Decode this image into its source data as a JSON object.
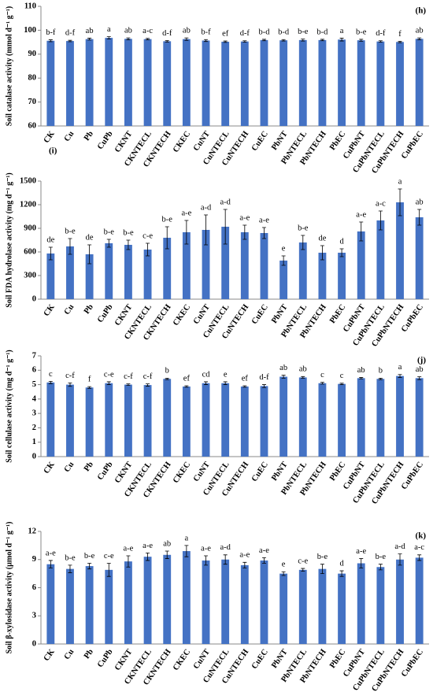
{
  "chart_data": [
    {
      "type": "bar",
      "panel_label": "(h)",
      "y_label": "Soil catalase activity (mmol d⁻¹ g⁻¹)",
      "categories": [
        "CK",
        "Cu",
        "Pb",
        "CuPb",
        "CKNT",
        "CKNTECL",
        "CKNTECH",
        "CKEC",
        "CuNT",
        "CuNTECL",
        "CuNTECH",
        "CuEC",
        "PbNT",
        "PbNTECL",
        "PbNTECH",
        "PbEC",
        "CuPbNT",
        "CuPbNTECL",
        "CuPbNTECH",
        "CuPbEC"
      ],
      "series": [
        {
          "color": "#4472c4",
          "values": [
            95.6,
            95.5,
            96.3,
            96.8,
            96.4,
            96.3,
            95.4,
            96.3,
            95.7,
            95.2,
            95.3,
            95.9,
            95.8,
            95.9,
            95.9,
            96.1,
            95.8,
            95.3,
            95.1,
            96.4
          ],
          "errors": [
            0.4,
            0.3,
            0.4,
            0.5,
            0.4,
            0.3,
            0.3,
            0.5,
            0.4,
            0.3,
            0.3,
            0.3,
            0.3,
            0.4,
            0.3,
            0.6,
            0.4,
            0.3,
            0.3,
            0.4
          ],
          "letters": [
            "b-f",
            "d-f",
            "ab",
            "a",
            "ab",
            "a-c",
            "d-f",
            "ab",
            "b-f",
            "ef",
            "d-f",
            "b-d",
            "b-d",
            "b-e",
            "b-d",
            "a",
            "b-e",
            "d-f",
            "f",
            "ab"
          ]
        }
      ],
      "ylim": [
        60,
        110
      ],
      "yticks": [
        60,
        70,
        80,
        90,
        100,
        110
      ]
    },
    {
      "type": "bar",
      "panel_label": "(i)",
      "y_label": "Soil FDA hydrolase activity (mg d⁻¹ g⁻¹)",
      "categories": [
        "CK",
        "Cu",
        "Pb",
        "CuPb",
        "CKNT",
        "CKNTECL",
        "CKNTECH",
        "CKEC",
        "CuNT",
        "CuNTECL",
        "CuNTECH",
        "CuEC",
        "PbNT",
        "PbNTECL",
        "PbNTECH",
        "PbEC",
        "CuPbNT",
        "CuPbNTECL",
        "CuPbNTECH",
        "CuPbEC"
      ],
      "series": [
        {
          "color": "#4472c4",
          "values": [
            580,
            670,
            570,
            710,
            690,
            630,
            780,
            850,
            880,
            920,
            850,
            840,
            490,
            720,
            590,
            590,
            860,
            1000,
            1230,
            1040
          ],
          "errors": [
            80,
            100,
            120,
            50,
            60,
            80,
            140,
            150,
            190,
            220,
            90,
            70,
            60,
            90,
            90,
            50,
            120,
            120,
            170,
            100
          ],
          "letters": [
            "de",
            "b-e",
            "de",
            "b-e",
            "b-e",
            "c-e",
            "b-e",
            "a-e",
            "a-d",
            "a-d",
            "a-e",
            "a-e",
            "e",
            "b-e",
            "de",
            "d",
            "a-e",
            "a-c",
            "a",
            "ab"
          ]
        }
      ],
      "ylim": [
        0,
        1500
      ],
      "yticks": [
        0,
        300,
        600,
        900,
        1200,
        1500
      ]
    },
    {
      "type": "bar",
      "panel_label": "(j)",
      "y_label": "Soil cellulase activity (mg d⁻¹ g⁻¹)",
      "categories": [
        "CK",
        "Cu",
        "Pb",
        "CuPb",
        "CKNT",
        "CKNTECL",
        "CKNTECH",
        "CKEC",
        "CuNT",
        "CuNTECL",
        "CuNTECH",
        "CuEC",
        "PbNT",
        "PbNTECL",
        "PbNTECH",
        "PbEC",
        "CuPbNT",
        "CuPbNTECL",
        "CuPbNTECH",
        "CuPbEC"
      ],
      "series": [
        {
          "color": "#4472c4",
          "values": [
            5.15,
            5.0,
            4.8,
            5.1,
            5.0,
            4.97,
            5.4,
            4.87,
            5.1,
            5.1,
            4.87,
            4.9,
            5.55,
            5.5,
            5.1,
            5.05,
            5.45,
            5.4,
            5.6,
            5.45
          ],
          "errors": [
            0.08,
            0.12,
            0.06,
            0.1,
            0.05,
            0.08,
            0.05,
            0.05,
            0.1,
            0.1,
            0.05,
            0.1,
            0.1,
            0.06,
            0.06,
            0.05,
            0.05,
            0.05,
            0.1,
            0.1
          ],
          "letters": [
            "c",
            "c-f",
            "f",
            "c-e",
            "c-f",
            "c-f",
            "b",
            "ef",
            "cd",
            "e",
            "ef",
            "d-f",
            "ab",
            "ab",
            "c",
            "c",
            "ab",
            "b",
            "a",
            "ab"
          ]
        }
      ],
      "ylim": [
        0,
        7
      ],
      "yticks": [
        0,
        1,
        2,
        3,
        4,
        5,
        6,
        7
      ]
    },
    {
      "type": "bar",
      "panel_label": "(k)",
      "y_label": "Soil β-xylosidase activity (µmol d⁻¹ g⁻¹)",
      "categories": [
        "CK",
        "Cu",
        "Pb",
        "CuPb",
        "CKNT",
        "CKNTECL",
        "CKNTECH",
        "CKEC",
        "CuNT",
        "CuNTECL",
        "CuNTECH",
        "CuEC",
        "PbNT",
        "PbNTECL",
        "PbNTECH",
        "PbEC",
        "CuPbNT",
        "CuPbNTECL",
        "CuPbNTECH",
        "CuPbEC"
      ],
      "series": [
        {
          "color": "#4472c4",
          "values": [
            8.5,
            8.0,
            8.3,
            7.9,
            8.8,
            9.3,
            9.5,
            9.9,
            8.9,
            9.0,
            8.4,
            8.9,
            7.5,
            7.9,
            8.0,
            7.5,
            8.6,
            8.2,
            9.0,
            9.2
          ],
          "errors": [
            0.4,
            0.4,
            0.3,
            0.7,
            0.6,
            0.4,
            0.4,
            0.6,
            0.5,
            0.5,
            0.3,
            0.3,
            0.2,
            0.15,
            0.5,
            0.3,
            0.5,
            0.3,
            0.6,
            0.3
          ],
          "letters": [
            "a-e",
            "b-e",
            "b-e",
            "c-e",
            "a-e",
            "a-e",
            "ab",
            "a",
            "a-e",
            "a-d",
            "a-e",
            "a-e",
            "e",
            "c-e",
            "b-e",
            "d",
            "a-e",
            "b-e",
            "a-d",
            "a-c"
          ]
        }
      ],
      "ylim": [
        0,
        12
      ],
      "yticks": [
        0,
        3,
        6,
        9,
        12
      ]
    }
  ]
}
